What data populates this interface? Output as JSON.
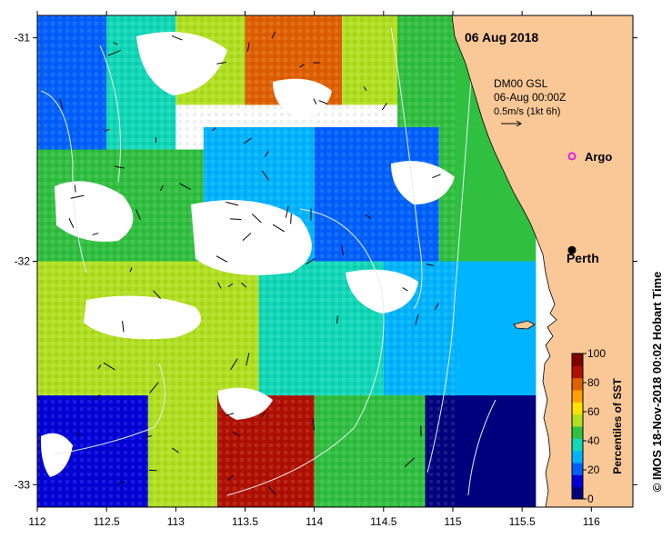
{
  "map": {
    "date_label": "06 Aug 2018",
    "current_product": "DM00 GSL",
    "current_time": "06-Aug 00:00Z",
    "current_scale": "0.5m/s (1kt 6h)",
    "credit": "© IMOS 18-Nov-2018 00:02 Hobart Time",
    "places": [
      {
        "name": "Argo",
        "lon": 115.86,
        "lat": -31.53,
        "marker": "magenta-circle"
      },
      {
        "name": "Perth",
        "lon": 115.86,
        "lat": -31.95,
        "marker": "black-dot"
      }
    ],
    "colors": {
      "land": "#fac896",
      "no_data": "#ffffff",
      "contour": "#e8f0f4",
      "vector": "#000000",
      "argo": "#e020e0"
    }
  },
  "chart_data": {
    "type": "heatmap",
    "xlim": [
      112,
      116.3
    ],
    "ylim": [
      -33.1,
      -30.9
    ],
    "x_ticks": [
      "112",
      "112.5",
      "113",
      "113.5",
      "114",
      "114.5",
      "115",
      "115.5",
      "116"
    ],
    "y_ticks": [
      "-31",
      "-32",
      "-33"
    ],
    "colorbar": {
      "label": "Percentiles of SST",
      "range": [
        0,
        100
      ],
      "ticks": [
        "0",
        "20",
        "40",
        "60",
        "80",
        "100"
      ],
      "colors": [
        "#00007f",
        "#0000d8",
        "#0060ff",
        "#00b4ff",
        "#10d8b8",
        "#30c040",
        "#b0e020",
        "#ffe000",
        "#ffa000",
        "#e06000",
        "#b01000",
        "#800000"
      ]
    },
    "regions": [
      {
        "lon": [
          112.0,
          112.5
        ],
        "lat": [
          -31.6,
          -30.9
        ],
        "value": 20
      },
      {
        "lon": [
          112.5,
          113.0
        ],
        "lat": [
          -31.5,
          -30.9
        ],
        "value": 35
      },
      {
        "lon": [
          113.0,
          113.7
        ],
        "lat": [
          -31.3,
          -30.9
        ],
        "value": 55
      },
      {
        "lon": [
          113.5,
          114.2
        ],
        "lat": [
          -31.3,
          -30.9
        ],
        "value": 80
      },
      {
        "lon": [
          114.2,
          114.7
        ],
        "lat": [
          -31.3,
          -30.9
        ],
        "value": 50
      },
      {
        "lon": [
          114.6,
          115.3
        ],
        "lat": [
          -31.4,
          -30.9
        ],
        "value": 45
      },
      {
        "lon": [
          112.0,
          113.2
        ],
        "lat": [
          -32.0,
          -31.5
        ],
        "value": 42
      },
      {
        "lon": [
          113.2,
          114.0
        ],
        "lat": [
          -32.0,
          -31.4
        ],
        "value": 32
      },
      {
        "lon": [
          114.0,
          114.9
        ],
        "lat": [
          -32.0,
          -31.4
        ],
        "value": 18
      },
      {
        "lon": [
          114.9,
          115.6
        ],
        "lat": [
          -32.0,
          -31.4
        ],
        "value": 45
      },
      {
        "lon": [
          112.0,
          112.8
        ],
        "lat": [
          -32.6,
          -32.0
        ],
        "value": 55
      },
      {
        "lon": [
          112.8,
          113.6
        ],
        "lat": [
          -32.6,
          -32.0
        ],
        "value": 50
      },
      {
        "lon": [
          113.6,
          114.5
        ],
        "lat": [
          -32.6,
          -32.0
        ],
        "value": 40
      },
      {
        "lon": [
          114.5,
          115.6
        ],
        "lat": [
          -32.6,
          -32.0
        ],
        "value": 25
      },
      {
        "lon": [
          112.0,
          112.8
        ],
        "lat": [
          -33.1,
          -32.6
        ],
        "value": 10
      },
      {
        "lon": [
          112.8,
          113.3
        ],
        "lat": [
          -33.1,
          -32.6
        ],
        "value": 50
      },
      {
        "lon": [
          113.3,
          114.0
        ],
        "lat": [
          -33.1,
          -32.6
        ],
        "value": 88
      },
      {
        "lon": [
          114.0,
          114.8
        ],
        "lat": [
          -33.1,
          -32.6
        ],
        "value": 45
      },
      {
        "lon": [
          114.8,
          115.6
        ],
        "lat": [
          -33.1,
          -32.6
        ],
        "value": 8
      }
    ]
  }
}
